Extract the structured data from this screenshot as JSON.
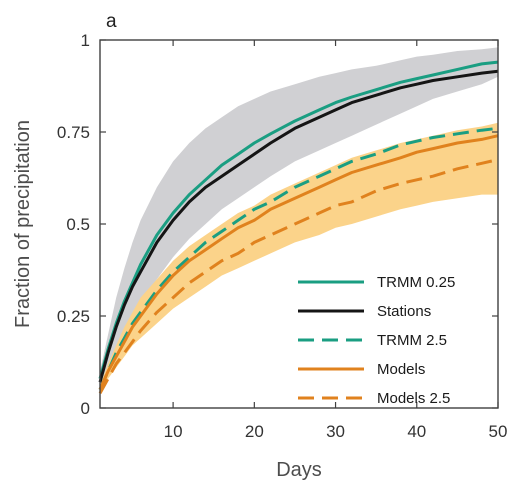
{
  "chart_data": {
    "type": "line",
    "panel_label": "a",
    "xlabel": "Days",
    "ylabel": "Fraction of precipitation",
    "xlim": [
      1,
      50
    ],
    "ylim": [
      0,
      1
    ],
    "xticks": [
      10,
      20,
      30,
      40,
      50
    ],
    "yticks": [
      0,
      0.25,
      0.5,
      0.75,
      1
    ],
    "ytick_labels": [
      "0",
      "0.25",
      "0.5",
      "0.75",
      "1"
    ],
    "grid": false,
    "legend_position": "bottom-right",
    "x": [
      1,
      2,
      3,
      4,
      5,
      6,
      8,
      10,
      12,
      14,
      16,
      18,
      20,
      22,
      25,
      28,
      30,
      32,
      35,
      38,
      40,
      42,
      45,
      48,
      50
    ],
    "bands": [
      {
        "color": "#d0d0d3",
        "lower": [
          0.05,
          0.11,
          0.16,
          0.21,
          0.25,
          0.29,
          0.35,
          0.41,
          0.46,
          0.5,
          0.54,
          0.57,
          0.6,
          0.63,
          0.67,
          0.7,
          0.72,
          0.74,
          0.77,
          0.8,
          0.82,
          0.84,
          0.86,
          0.88,
          0.9
        ],
        "upper": [
          0.1,
          0.2,
          0.3,
          0.38,
          0.45,
          0.51,
          0.6,
          0.67,
          0.72,
          0.76,
          0.79,
          0.82,
          0.84,
          0.86,
          0.88,
          0.9,
          0.91,
          0.92,
          0.93,
          0.945,
          0.955,
          0.96,
          0.97,
          0.975,
          0.98
        ]
      },
      {
        "color": "#fbd38a",
        "lower": [
          0.04,
          0.08,
          0.11,
          0.14,
          0.17,
          0.19,
          0.23,
          0.27,
          0.3,
          0.33,
          0.36,
          0.38,
          0.4,
          0.42,
          0.45,
          0.47,
          0.49,
          0.5,
          0.52,
          0.54,
          0.55,
          0.56,
          0.57,
          0.58,
          0.58
        ],
        "upper": [
          0.06,
          0.12,
          0.17,
          0.22,
          0.26,
          0.3,
          0.35,
          0.4,
          0.44,
          0.47,
          0.5,
          0.53,
          0.55,
          0.58,
          0.61,
          0.64,
          0.66,
          0.68,
          0.7,
          0.72,
          0.73,
          0.74,
          0.755,
          0.765,
          0.775
        ]
      }
    ],
    "series": [
      {
        "name": "TRMM 0.25",
        "color": "#1a9e82",
        "dash": "solid",
        "values": [
          0.08,
          0.16,
          0.23,
          0.29,
          0.34,
          0.39,
          0.47,
          0.53,
          0.58,
          0.62,
          0.66,
          0.69,
          0.72,
          0.745,
          0.78,
          0.81,
          0.83,
          0.845,
          0.865,
          0.885,
          0.895,
          0.905,
          0.92,
          0.935,
          0.94
        ]
      },
      {
        "name": "Stations",
        "color": "#151515",
        "dash": "solid",
        "values": [
          0.07,
          0.15,
          0.22,
          0.28,
          0.33,
          0.37,
          0.45,
          0.51,
          0.56,
          0.6,
          0.63,
          0.66,
          0.69,
          0.72,
          0.76,
          0.79,
          0.81,
          0.83,
          0.85,
          0.87,
          0.88,
          0.89,
          0.9,
          0.91,
          0.915
        ]
      },
      {
        "name": "TRMM 2.5",
        "color": "#1a9e82",
        "dash": "dashed",
        "values": [
          0.05,
          0.1,
          0.15,
          0.19,
          0.23,
          0.26,
          0.32,
          0.37,
          0.41,
          0.45,
          0.48,
          0.51,
          0.54,
          0.56,
          0.6,
          0.63,
          0.65,
          0.67,
          0.69,
          0.715,
          0.725,
          0.735,
          0.745,
          0.755,
          0.76
        ]
      },
      {
        "name": "Models",
        "color": "#e0821e",
        "dash": "solid",
        "values": [
          0.05,
          0.1,
          0.14,
          0.18,
          0.22,
          0.25,
          0.31,
          0.36,
          0.4,
          0.43,
          0.46,
          0.49,
          0.51,
          0.54,
          0.57,
          0.6,
          0.62,
          0.64,
          0.66,
          0.68,
          0.695,
          0.705,
          0.72,
          0.73,
          0.74
        ]
      },
      {
        "name": "Models 2.5",
        "color": "#e0821e",
        "dash": "dashed",
        "values": [
          0.04,
          0.08,
          0.12,
          0.15,
          0.18,
          0.21,
          0.26,
          0.3,
          0.34,
          0.37,
          0.4,
          0.42,
          0.45,
          0.47,
          0.5,
          0.53,
          0.55,
          0.56,
          0.59,
          0.61,
          0.62,
          0.63,
          0.65,
          0.665,
          0.675
        ]
      }
    ]
  }
}
